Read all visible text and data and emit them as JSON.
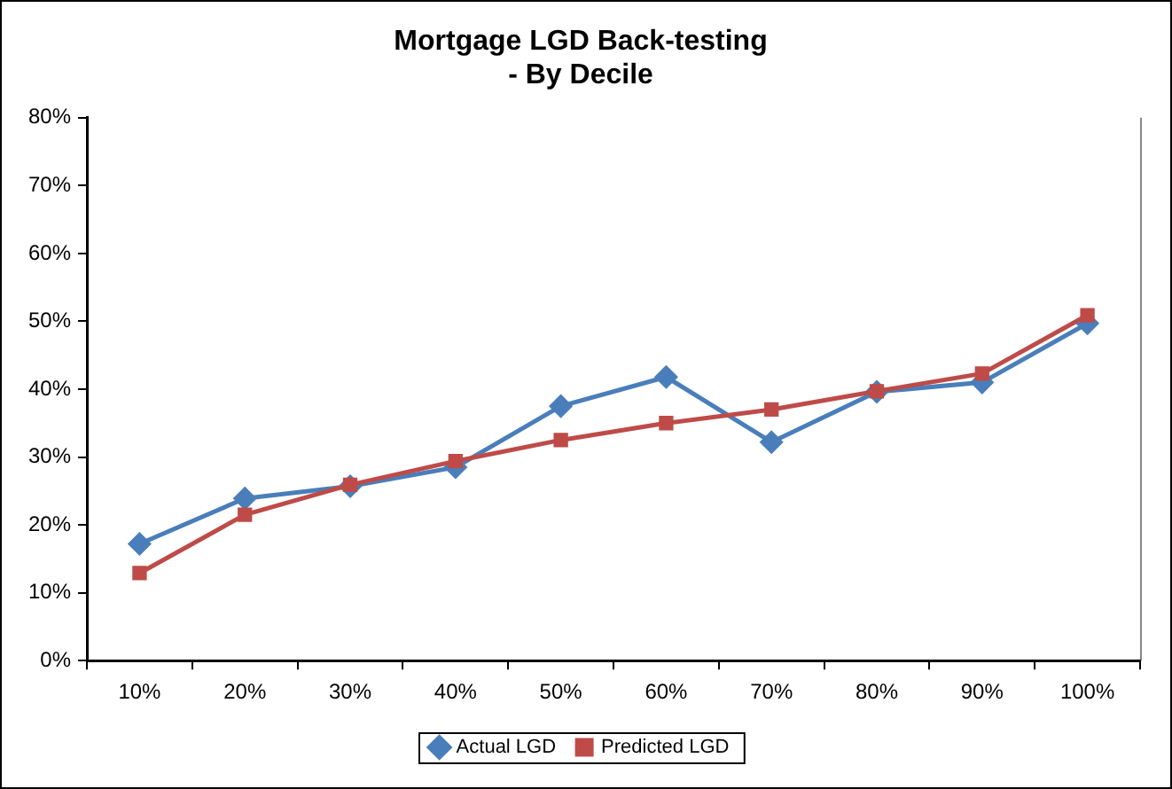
{
  "chart_data": {
    "type": "line",
    "title": "Mortgage LGD Back-testing\n- By Decile",
    "categories": [
      "10%",
      "20%",
      "30%",
      "40%",
      "50%",
      "60%",
      "70%",
      "80%",
      "90%",
      "100%"
    ],
    "series": [
      {
        "name": "Actual LGD",
        "color": "#4a7ebb",
        "marker": "diamond",
        "values": [
          17.2,
          23.9,
          25.7,
          28.5,
          37.5,
          41.8,
          32.2,
          39.6,
          41.0,
          49.7
        ]
      },
      {
        "name": "Predicted LGD",
        "color": "#be4b48",
        "marker": "square",
        "values": [
          12.9,
          21.5,
          25.9,
          29.4,
          32.5,
          35.0,
          37.0,
          39.7,
          42.3,
          50.9
        ]
      }
    ],
    "ylim": [
      0,
      80
    ],
    "yticks": [
      {
        "value": 0,
        "label": "0%"
      },
      {
        "value": 10,
        "label": "10%"
      },
      {
        "value": 20,
        "label": "20%"
      },
      {
        "value": 30,
        "label": "30%"
      },
      {
        "value": 40,
        "label": "40%"
      },
      {
        "value": 50,
        "label": "50%"
      },
      {
        "value": 60,
        "label": "60%"
      },
      {
        "value": 70,
        "label": "70%"
      },
      {
        "value": 80,
        "label": "80%"
      }
    ],
    "grid": false,
    "legend": "bottom"
  }
}
